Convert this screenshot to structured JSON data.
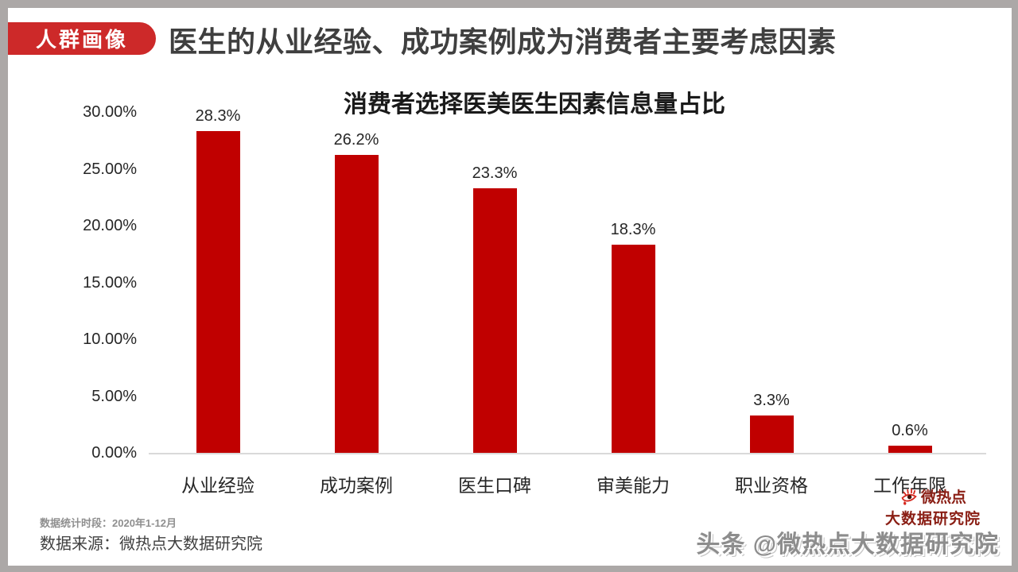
{
  "header": {
    "badge": {
      "label": "人群画像",
      "bg": "#cd2929",
      "text_color": "#ffffff"
    },
    "title": "医生的从业经验、成功案例成为消费者主要考虑因素"
  },
  "chart_data": {
    "type": "bar",
    "title": "消费者选择医美医生因素信息量占比",
    "categories": [
      "从业经验",
      "成功案例",
      "医生口碑",
      "审美能力",
      "职业资格",
      "工作年限"
    ],
    "values": [
      28.3,
      26.2,
      23.3,
      18.3,
      3.3,
      0.6
    ],
    "value_labels": [
      "28.3%",
      "26.2%",
      "23.3%",
      "18.3%",
      "3.3%",
      "0.6%"
    ],
    "y_ticks": [
      "30.00%",
      "25.00%",
      "20.00%",
      "15.00%",
      "10.00%",
      "5.00%",
      "0.00%"
    ],
    "ylim": [
      0,
      30
    ],
    "xlabel": "",
    "ylabel": "",
    "grid": false,
    "legend": "none",
    "bar_color": "#c00000",
    "axis_line_color": "#d9d9d9"
  },
  "footer": {
    "period_label": "数据统计时段：2020年1-12月",
    "source_label": "数据来源：微热点大数据研究院",
    "logo": {
      "line1": "微热点",
      "line2": "大数据研究院",
      "color": "#8a1e14"
    },
    "watermark": "头条 @微热点大数据研究院"
  }
}
